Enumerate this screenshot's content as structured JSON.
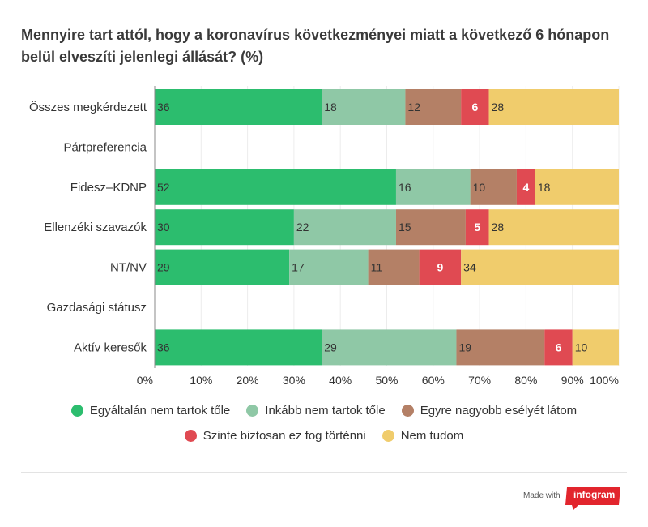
{
  "title": "Mennyire tart attól, hogy a koronavírus következményei miatt a következő 6 hónapon belül elveszíti jelenlegi állását? (%)",
  "footer": {
    "made_with": "Made with",
    "brand": "infogram"
  },
  "colors": {
    "brand": "#e2252d",
    "series": [
      "#2cbd6e",
      "#8fc8a6",
      "#b48066",
      "#e04a52",
      "#f0cc6c"
    ]
  },
  "chart_data": {
    "type": "bar",
    "orientation": "horizontal",
    "stacked": true,
    "title": "Mennyire tart attól, hogy a koronavírus következményei miatt a következő 6 hónapon belül elveszíti jelenlegi állását? (%)",
    "categories": [
      "Összes megkérdezett",
      "Pártpreferencia",
      "Fidesz–KDNP",
      "Ellenzéki szavazók",
      "NT/NV",
      "Gazdasági státusz",
      "Aktív keresők"
    ],
    "series": [
      {
        "name": "Egyáltalán nem tartok tőle",
        "color": "#2cbd6e",
        "values": [
          36,
          null,
          52,
          30,
          29,
          null,
          36
        ]
      },
      {
        "name": "Inkább nem tartok tőle",
        "color": "#8fc8a6",
        "values": [
          18,
          null,
          16,
          22,
          17,
          null,
          29
        ]
      },
      {
        "name": "Egyre nagyobb esélyét látom",
        "color": "#b48066",
        "values": [
          12,
          null,
          10,
          15,
          11,
          null,
          19
        ]
      },
      {
        "name": "Szinte biztosan ez fog történni",
        "color": "#e04a52",
        "values": [
          6,
          null,
          4,
          5,
          9,
          null,
          6
        ]
      },
      {
        "name": "Nem tudom",
        "color": "#f0cc6c",
        "values": [
          28,
          null,
          18,
          28,
          34,
          null,
          10
        ]
      }
    ],
    "xlim": [
      0,
      100
    ],
    "xticks": [
      "0%",
      "10%",
      "20%",
      "30%",
      "40%",
      "50%",
      "60%",
      "70%",
      "80%",
      "90%",
      "100%"
    ],
    "xlabel": "",
    "ylabel": "",
    "grid": true,
    "legend_position": "bottom"
  }
}
